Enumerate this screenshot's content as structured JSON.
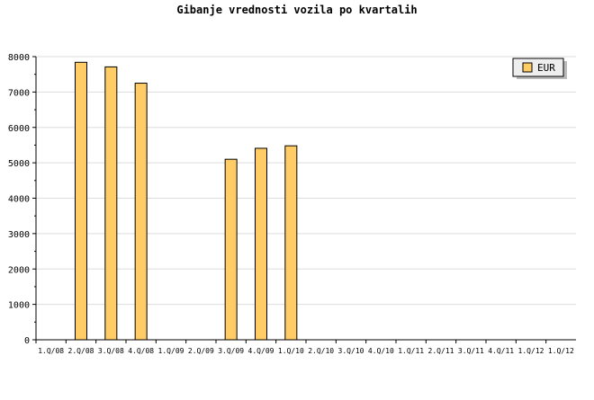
{
  "chart_data": {
    "type": "bar",
    "title": "Gibanje vrednosti vozila po kvartalih",
    "categories": [
      "1.Q/08",
      "2.Q/08",
      "3.Q/08",
      "4.Q/08",
      "1.Q/09",
      "2.Q/09",
      "3.Q/09",
      "4.Q/09",
      "1.Q/10",
      "2.Q/10",
      "3.Q/10",
      "4.Q/10",
      "1.Q/11",
      "2.Q/11",
      "3.Q/11",
      "4.Q/11",
      "1.Q/12",
      "1.Q/12"
    ],
    "series": [
      {
        "name": "EUR",
        "values": [
          null,
          7840,
          7710,
          7250,
          null,
          null,
          5100,
          5410,
          5480,
          null,
          null,
          null,
          null,
          null,
          null,
          null,
          null,
          null
        ]
      }
    ],
    "ylim": [
      0,
      8000
    ],
    "yticks": [
      0,
      1000,
      2000,
      3000,
      4000,
      5000,
      6000,
      7000,
      8000
    ],
    "grid": true,
    "legend": "top-right",
    "bar_color": "#FFCC66"
  }
}
